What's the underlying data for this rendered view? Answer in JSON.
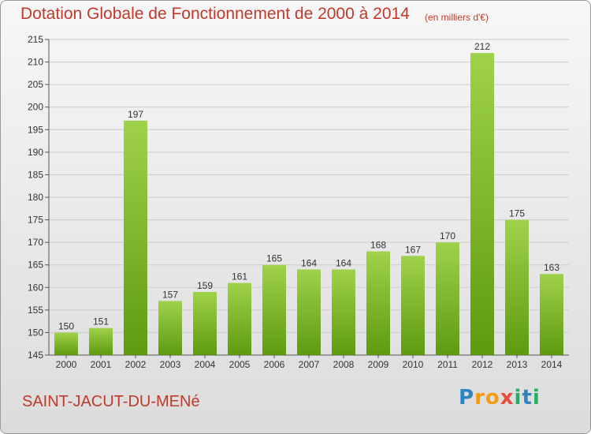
{
  "header": {
    "title": "Dotation Globale de Fonctionnement de 2000 à 2014",
    "unit": "(en milliers d'€)"
  },
  "footer": {
    "commune": "SAINT-JACUT-DU-MENé",
    "logo": "Proxiti"
  },
  "colors": {
    "title": "#c0392b",
    "bar_top": "#9fd24b",
    "bar_bottom": "#5e9a10",
    "gridline": "#cccccc"
  },
  "chart_data": {
    "type": "bar",
    "title": "Dotation Globale de Fonctionnement de 2000 à 2014",
    "subtitle": "(en milliers d'€)",
    "xlabel": "",
    "ylabel": "",
    "categories": [
      "2000",
      "2001",
      "2002",
      "2003",
      "2004",
      "2005",
      "2006",
      "2007",
      "2008",
      "2009",
      "2010",
      "2011",
      "2012",
      "2013",
      "2014"
    ],
    "values": [
      150,
      151,
      197,
      157,
      159,
      161,
      165,
      164,
      164,
      168,
      167,
      170,
      212,
      175,
      163
    ],
    "data_labels": [
      "150",
      "151",
      "197",
      "157",
      "159",
      "161",
      "165",
      "164",
      "164",
      "168",
      "167",
      "170",
      "212",
      "175",
      "163"
    ],
    "ylim": [
      145,
      215
    ],
    "yticks": [
      145,
      150,
      155,
      160,
      165,
      170,
      175,
      180,
      185,
      190,
      195,
      200,
      205,
      210,
      215
    ],
    "grid": true,
    "legend": "none"
  }
}
